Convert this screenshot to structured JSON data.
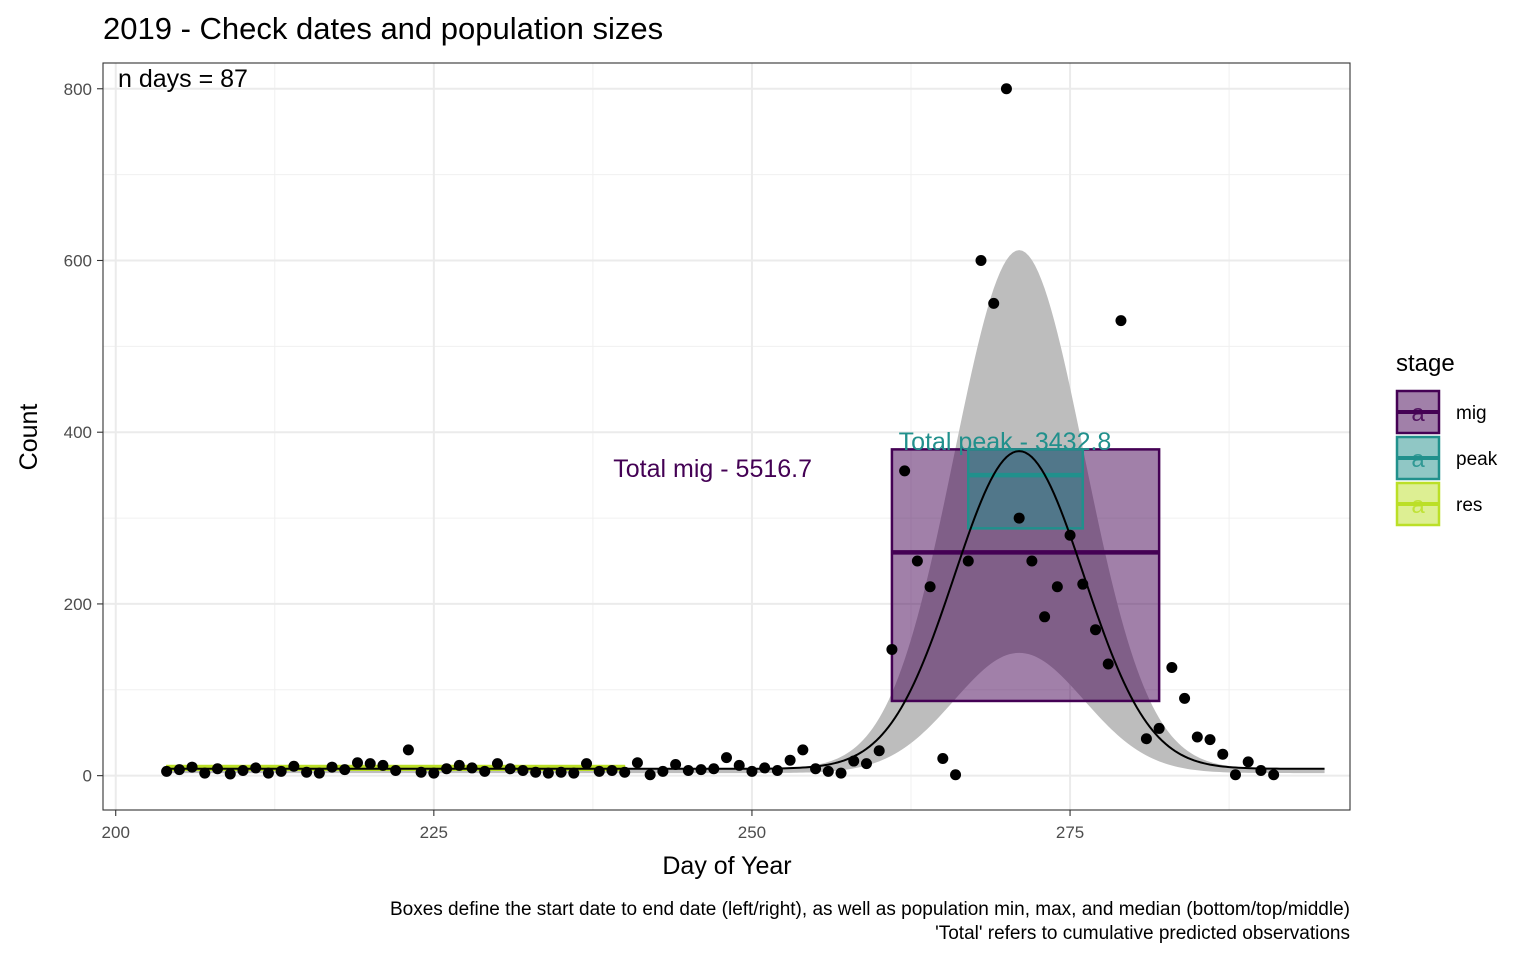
{
  "chart_data": {
    "type": "scatter",
    "title": "2019 - Check dates and population sizes",
    "xlabel": "Day of Year",
    "ylabel": "Count",
    "xlim": [
      199,
      297
    ],
    "ylim": [
      -40,
      830
    ],
    "x_ticks": [
      200,
      225,
      250,
      275
    ],
    "y_ticks": [
      0,
      200,
      400,
      600,
      800
    ],
    "grid": true,
    "n_days_label": "n days = 87",
    "points": [
      [
        204,
        5
      ],
      [
        205,
        7
      ],
      [
        206,
        10
      ],
      [
        207,
        3
      ],
      [
        208,
        8
      ],
      [
        209,
        2
      ],
      [
        210,
        6
      ],
      [
        211,
        9
      ],
      [
        212,
        3
      ],
      [
        213,
        5
      ],
      [
        214,
        11
      ],
      [
        215,
        4
      ],
      [
        216,
        3
      ],
      [
        217,
        10
      ],
      [
        218,
        7
      ],
      [
        219,
        15
      ],
      [
        220,
        14
      ],
      [
        221,
        12
      ],
      [
        222,
        6
      ],
      [
        223,
        30
      ],
      [
        224,
        4
      ],
      [
        225,
        3
      ],
      [
        226,
        8
      ],
      [
        227,
        12
      ],
      [
        228,
        9
      ],
      [
        229,
        5
      ],
      [
        230,
        14
      ],
      [
        231,
        8
      ],
      [
        232,
        6
      ],
      [
        233,
        4
      ],
      [
        234,
        3
      ],
      [
        235,
        4
      ],
      [
        236,
        3
      ],
      [
        237,
        14
      ],
      [
        238,
        5
      ],
      [
        239,
        6
      ],
      [
        240,
        4
      ],
      [
        241,
        15
      ],
      [
        242,
        1
      ],
      [
        243,
        5
      ],
      [
        244,
        13
      ],
      [
        245,
        6
      ],
      [
        246,
        7
      ],
      [
        247,
        8
      ],
      [
        248,
        21
      ],
      [
        249,
        12
      ],
      [
        250,
        5
      ],
      [
        251,
        9
      ],
      [
        252,
        6
      ],
      [
        253,
        18
      ],
      [
        254,
        30
      ],
      [
        255,
        8
      ],
      [
        256,
        5
      ],
      [
        257,
        3
      ],
      [
        258,
        17
      ],
      [
        259,
        14
      ],
      [
        260,
        29
      ],
      [
        261,
        147
      ],
      [
        262,
        355
      ],
      [
        263,
        250
      ],
      [
        264,
        220
      ],
      [
        265,
        20
      ],
      [
        266,
        1
      ],
      [
        267,
        250
      ],
      [
        268,
        600
      ],
      [
        269,
        550
      ],
      [
        270,
        800
      ],
      [
        271,
        300
      ],
      [
        272,
        250
      ],
      [
        273,
        185
      ],
      [
        274,
        220
      ],
      [
        275,
        280
      ],
      [
        276,
        223
      ],
      [
        277,
        170
      ],
      [
        278,
        130
      ],
      [
        279,
        530
      ],
      [
        281,
        43
      ],
      [
        282,
        55
      ],
      [
        283,
        126
      ],
      [
        284,
        90
      ],
      [
        285,
        45
      ],
      [
        286,
        42
      ],
      [
        287,
        25
      ],
      [
        288,
        1
      ],
      [
        289,
        16
      ],
      [
        290,
        6
      ],
      [
        291,
        1
      ]
    ],
    "fit_curve": {
      "peak_day": 271,
      "peak_count": 378,
      "sd": 5.1,
      "baseline": 8,
      "band_upper_peak": 612,
      "band_lower_peak": 148,
      "range": [
        204,
        295
      ]
    },
    "stages": [
      {
        "name": "mig",
        "color": "#440154",
        "start": 261,
        "end": 282,
        "min": 87,
        "max": 380,
        "median": 260,
        "total_label": "Total mig - 5516.7"
      },
      {
        "name": "peak",
        "color": "#21908C",
        "start": 267,
        "end": 276,
        "min": 288,
        "max": 380,
        "median": 350,
        "total_label": "Total peak - 3432.8"
      },
      {
        "name": "res",
        "color": "#BBDF27",
        "start": 204,
        "end": 240,
        "min": 6,
        "max": 12,
        "median": 9
      }
    ],
    "legend": {
      "title": "stage",
      "position": "right",
      "key_glyph": "a",
      "entries": [
        "mig",
        "peak",
        "res"
      ]
    },
    "caption_lines": [
      "Boxes define the start date to end date (left/right), as well as population min, max, and median (bottom/top/middle)",
      "'Total' refers to cumulative predicted observations"
    ]
  }
}
